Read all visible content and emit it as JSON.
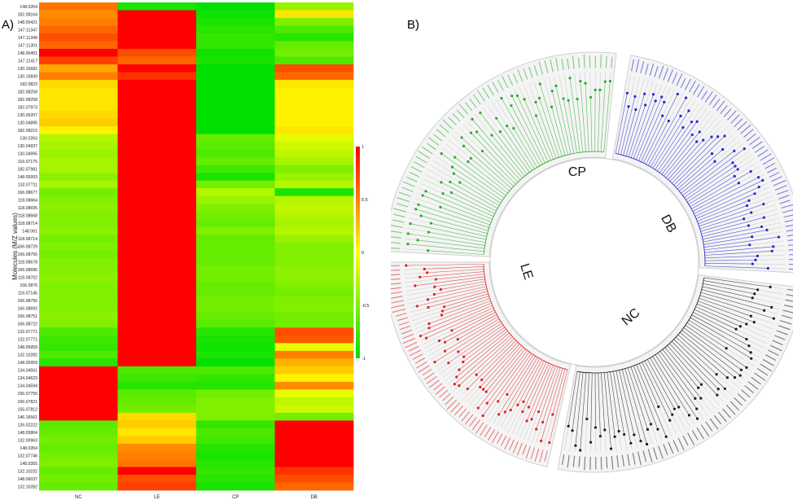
{
  "panels": {
    "a_label": "A)",
    "b_label": "B)"
  },
  "chart_data": [
    {
      "type": "heatmap",
      "ylabel": "Molecules (M/Z values)",
      "columns": [
        "NC",
        "LE",
        "CP",
        "DB"
      ],
      "rows": [
        "148.0354",
        "182.08164",
        "148.00421",
        "147.11347",
        "147.11349",
        "147.11301",
        "148.00451",
        "147.11417",
        "130.15682",
        "130.15839",
        "182.0823",
        "182.08258",
        "182.08258",
        "182.07973",
        "130.05207",
        "130.04895",
        "182.08215",
        "130.0263",
        "130.04937",
        "130.04995",
        "116.07175",
        "182.07981",
        "148.05993",
        "132.07711",
        "166.08677",
        "118.08664",
        "118.08695",
        "118.08668",
        "118.08714",
        "148.061",
        "118.08714",
        "166.08729",
        "166.08756",
        "118.08678",
        "166.08696",
        "118.08702",
        "166.0876",
        "116.07145",
        "166.08756",
        "166.08692",
        "166.08751",
        "166.08722",
        "132.07771",
        "132.07771",
        "148.05959",
        "132.10282",
        "148.05959",
        "134.04561",
        "134.04623",
        "134.04594",
        "156.07755",
        "156.07821",
        "156.07812",
        "146.16561",
        "126.02222",
        "148.05804",
        "132.00963",
        "148.0354",
        "132.07746",
        "148.0355",
        "132.10232",
        "148.06037",
        "132.10282"
      ],
      "values": [
        [
          0.55,
          -0.9,
          -1,
          -0.4
        ],
        [
          0.45,
          1,
          -0.95,
          0.1
        ],
        [
          0.5,
          1,
          -0.9,
          -0.5
        ],
        [
          0.6,
          1,
          -0.85,
          -0.7
        ],
        [
          0.7,
          1,
          -0.8,
          -0.85
        ],
        [
          0.6,
          1,
          -0.8,
          -0.6
        ],
        [
          1,
          0.7,
          -0.95,
          -0.55
        ],
        [
          0.75,
          0.6,
          -0.9,
          -0.7
        ],
        [
          0.35,
          1,
          -1,
          0.7
        ],
        [
          0.5,
          0.8,
          -1,
          0.6
        ],
        [
          0.15,
          1,
          -1,
          0.1
        ],
        [
          0.1,
          1,
          -1,
          0.05
        ],
        [
          0.1,
          1,
          -1,
          0.05
        ],
        [
          0.1,
          1,
          -1,
          0.05
        ],
        [
          0.15,
          1,
          -1,
          0.05
        ],
        [
          0.2,
          1,
          -1,
          0.05
        ],
        [
          0.05,
          1,
          -1,
          0.1
        ],
        [
          -0.3,
          1,
          -0.6,
          -0.1
        ],
        [
          -0.35,
          1,
          -0.65,
          -0.2
        ],
        [
          -0.4,
          1,
          -0.7,
          -0.25
        ],
        [
          -0.35,
          1,
          -0.6,
          -0.35
        ],
        [
          -0.35,
          1,
          -0.75,
          -0.5
        ],
        [
          -0.45,
          1,
          -0.9,
          -0.4
        ],
        [
          -0.35,
          1,
          -0.55,
          -0.3
        ],
        [
          -0.55,
          1,
          -0.3,
          -0.9
        ],
        [
          -0.5,
          1,
          -0.4,
          -0.3
        ],
        [
          -0.45,
          1,
          -0.5,
          -0.25
        ],
        [
          -0.5,
          1,
          -0.55,
          -0.3
        ],
        [
          -0.5,
          1,
          -0.6,
          -0.35
        ],
        [
          -0.45,
          1,
          -0.5,
          -0.3
        ],
        [
          -0.55,
          1,
          -0.6,
          -0.4
        ],
        [
          -0.5,
          1,
          -0.6,
          -0.5
        ],
        [
          -0.55,
          1,
          -0.6,
          -0.5
        ],
        [
          -0.5,
          1,
          -0.6,
          -0.5
        ],
        [
          -0.5,
          1,
          -0.55,
          -0.45
        ],
        [
          -0.45,
          1,
          -0.55,
          -0.45
        ],
        [
          -0.5,
          1,
          -0.6,
          -0.5
        ],
        [
          -0.5,
          1,
          -0.6,
          -0.55
        ],
        [
          -0.5,
          1,
          -0.55,
          -0.5
        ],
        [
          -0.5,
          1,
          -0.55,
          -0.5
        ],
        [
          -0.45,
          1,
          -0.6,
          -0.55
        ],
        [
          -0.5,
          1,
          -0.65,
          -0.55
        ],
        [
          -0.7,
          1,
          -0.85,
          0.7
        ],
        [
          -0.75,
          1,
          -0.9,
          0.65
        ],
        [
          -0.8,
          1,
          -0.95,
          -0.1
        ],
        [
          -0.7,
          1,
          -0.9,
          0.5
        ],
        [
          -0.85,
          1,
          -1,
          0.3
        ],
        [
          1,
          -0.7,
          -0.7,
          0.2
        ],
        [
          1,
          -0.75,
          -0.8,
          0.05
        ],
        [
          1,
          -0.85,
          -0.85,
          0.45
        ],
        [
          1,
          -0.65,
          -0.55,
          -0.1
        ],
        [
          1,
          -0.6,
          -0.5,
          -0.25
        ],
        [
          1,
          -0.55,
          -0.5,
          -0.2
        ],
        [
          1,
          0.15,
          -0.5,
          -0.55
        ],
        [
          -0.65,
          0.2,
          -0.8,
          1
        ],
        [
          -0.6,
          0.1,
          -0.7,
          1
        ],
        [
          -0.55,
          0.2,
          -0.75,
          1
        ],
        [
          -0.6,
          0.45,
          -0.85,
          1
        ],
        [
          -0.55,
          0.5,
          -0.9,
          1
        ],
        [
          -0.5,
          0.55,
          -0.85,
          1
        ],
        [
          -0.6,
          1,
          -0.8,
          0.8
        ],
        [
          -0.55,
          0.7,
          -0.85,
          0.7
        ],
        [
          -0.6,
          0.75,
          -0.9,
          0.6
        ]
      ],
      "colorbar": {
        "ticks": [
          "1",
          "0.5",
          "0",
          "-0.5",
          "-1"
        ],
        "colors": {
          "high": "#ff0000",
          "mid": "#ffff00",
          "low": "#00e000"
        }
      }
    },
    {
      "type": "circular-tree",
      "groups": [
        {
          "name": "CP",
          "color": "#1fa81f"
        },
        {
          "name": "DB",
          "color": "#1a1acc"
        },
        {
          "name": "NC",
          "color": "#111111"
        },
        {
          "name": "LE",
          "color": "#e01515"
        }
      ]
    }
  ]
}
